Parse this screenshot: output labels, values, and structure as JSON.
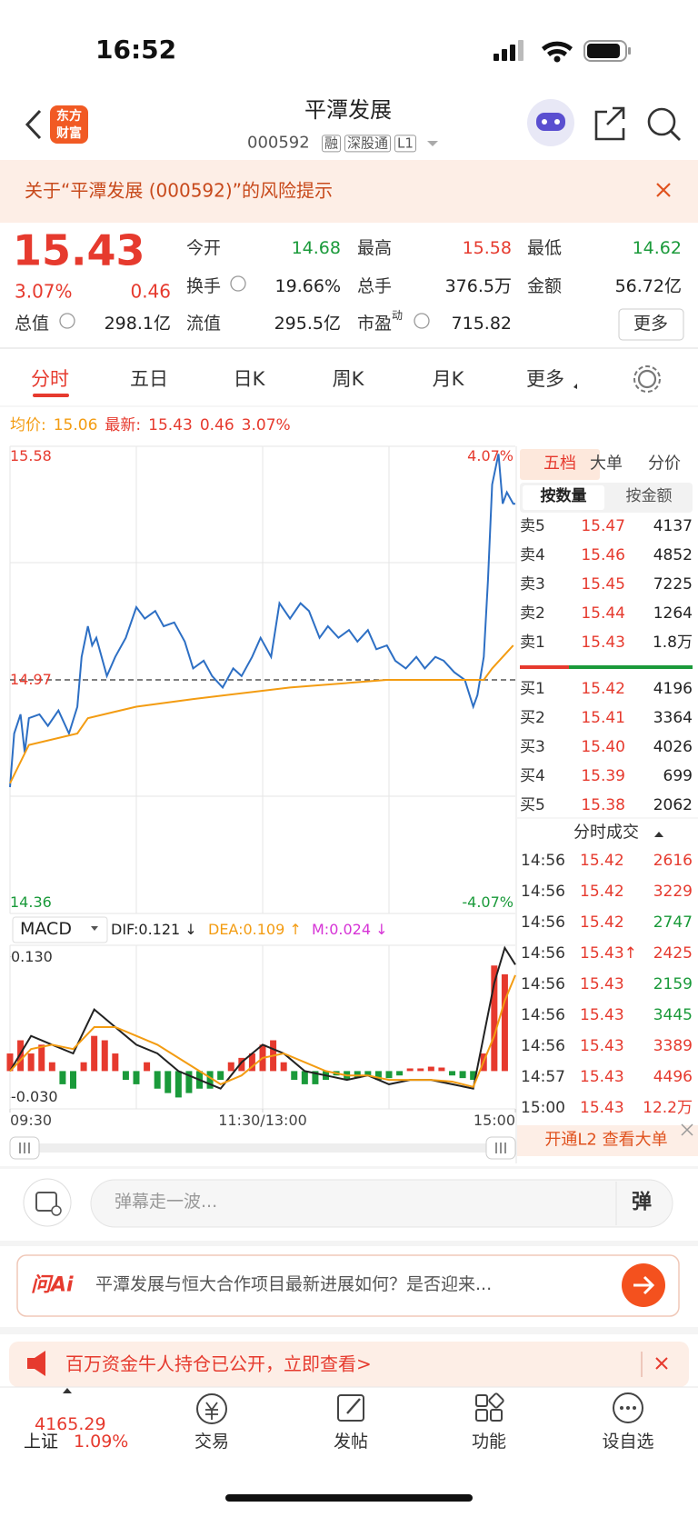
{
  "status": {
    "time": "16:52"
  },
  "header": {
    "logo": [
      "东方",
      "财富"
    ],
    "title": "平潭发展",
    "code": "000592",
    "badges": [
      "融",
      "深股通",
      "L1"
    ]
  },
  "risk_notice": "关于“平潭发展 (000592)”的风险提示",
  "quote": {
    "price": "15.43",
    "change_pct": "3.07%",
    "change": "0.46",
    "fields": [
      {
        "label": "今开",
        "value": "14.68",
        "color": "#1a9a3a"
      },
      {
        "label": "最高",
        "value": "15.58",
        "color": "#e63a2e"
      },
      {
        "label": "最低",
        "value": "14.62",
        "color": "#1a9a3a"
      },
      {
        "label": "换手",
        "value": "19.66%"
      },
      {
        "label": "总手",
        "value": "376.5万"
      },
      {
        "label": "金额",
        "value": "56.72亿"
      },
      {
        "label": "总值",
        "value": "298.1亿"
      },
      {
        "label": "流值",
        "value": "295.5亿"
      },
      {
        "label": "市盈",
        "sup": "动",
        "value": "715.82"
      }
    ],
    "more": "更多"
  },
  "tabs": [
    "分时",
    "五日",
    "日K",
    "周K",
    "月K",
    "更多"
  ],
  "summary": {
    "avg_label": "均价:",
    "avg": "15.06",
    "last_label": "最新:",
    "last": "15.43",
    "change": "0.46",
    "pct": "3.07%"
  },
  "chart_data": [
    {
      "type": "line",
      "ylim": [
        14.36,
        15.58
      ],
      "yticks": [
        15.58,
        14.97,
        14.36
      ],
      "y2lim": [
        -4.07,
        4.07
      ],
      "y2ticks": [
        {
          "value": 4.07,
          "label": "4.07%"
        },
        {
          "value": -4.07,
          "label": "-4.07%"
        }
      ],
      "series": [
        {
          "name": "price",
          "color": "#2d6fc4",
          "x": [
            "09:30",
            "09:32",
            "09:35",
            "09:37",
            "09:39",
            "09:44",
            "09:48",
            "09:53",
            "09:58",
            "10:02",
            "10:04",
            "10:07",
            "10:09",
            "10:11",
            "10:16",
            "10:20",
            "10:25",
            "10:30",
            "10:34",
            "10:39",
            "10:43",
            "10:48",
            "10:53",
            "10:57",
            "11:02",
            "11:06",
            "11:11",
            "11:16",
            "11:20",
            "11:25",
            "11:29",
            "13:04",
            "13:08",
            "13:13",
            "13:18",
            "13:22",
            "13:27",
            "13:31",
            "13:36",
            "13:41",
            "13:45",
            "13:50",
            "13:54",
            "13:59",
            "14:03",
            "14:08",
            "14:13",
            "14:17",
            "14:22",
            "14:26",
            "14:31",
            "14:36",
            "14:40",
            "14:42",
            "14:45",
            "14:47",
            "14:49",
            "14:52",
            "14:54",
            "14:56",
            "14:59",
            "15:00"
          ],
          "values": [
            14.69,
            14.83,
            14.88,
            14.78,
            14.87,
            14.88,
            14.85,
            14.89,
            14.83,
            14.9,
            15.03,
            15.11,
            15.06,
            15.08,
            14.98,
            15.03,
            15.08,
            15.16,
            15.13,
            15.15,
            15.11,
            15.12,
            15.07,
            15.0,
            15.02,
            14.98,
            14.95,
            15.0,
            14.98,
            15.03,
            15.08,
            15.03,
            15.17,
            15.13,
            15.17,
            15.15,
            15.08,
            15.11,
            15.08,
            15.1,
            15.07,
            15.1,
            15.05,
            15.06,
            15.02,
            15.0,
            15.03,
            15.0,
            15.03,
            15.02,
            14.99,
            14.97,
            14.9,
            14.93,
            15.03,
            15.23,
            15.48,
            15.56,
            15.43,
            15.46,
            15.43,
            15.43
          ]
        },
        {
          "name": "avg",
          "color": "#f39c12",
          "x": [
            "09:30",
            "09:39",
            "10:02",
            "10:07",
            "10:30",
            "10:57",
            "13:13",
            "13:59",
            "14:45",
            "14:49",
            "14:59"
          ],
          "values": [
            14.7,
            14.8,
            14.83,
            14.87,
            14.9,
            14.92,
            14.95,
            14.97,
            14.97,
            15.0,
            15.06
          ]
        }
      ]
    },
    {
      "type": "macd",
      "indicator": "MACD",
      "ylim": [
        -0.043,
        0.143
      ],
      "yticks": [
        {
          "value": 0.13,
          "label": "0.130"
        },
        {
          "value": -0.03,
          "label": "-0.030"
        }
      ],
      "xticks": [
        "09:30",
        {
          "value": "11:30",
          "label": "11:30/13:00"
        },
        "15:00"
      ],
      "series": [
        {
          "name": "DIF:0.121 ↓",
          "color": "#222222",
          "x": [
            "09:30",
            "09:40",
            "09:50",
            "10:00",
            "10:10",
            "10:20",
            "10:30",
            "10:40",
            "10:50",
            "11:00",
            "11:10",
            "11:20",
            "11:30",
            "13:10",
            "13:20",
            "13:30",
            "13:40",
            "13:50",
            "14:00",
            "14:10",
            "14:20",
            "14:30",
            "14:40",
            "14:50",
            "14:55",
            "15:00"
          ],
          "values": [
            0,
            0.04,
            0.03,
            0.02,
            0.07,
            0.05,
            0.03,
            0.02,
            0,
            -0.01,
            -0.02,
            0.01,
            0.03,
            0.02,
            0,
            -0.005,
            -0.01,
            -0.005,
            -0.015,
            -0.01,
            -0.01,
            -0.015,
            -0.02,
            0.1,
            0.14,
            0.121
          ]
        },
        {
          "name": "DEA:0.109 ↑",
          "color": "#f39c12",
          "x": [
            "09:30",
            "09:40",
            "09:50",
            "10:00",
            "10:10",
            "10:20",
            "10:30",
            "10:40",
            "10:50",
            "11:00",
            "11:10",
            "11:20",
            "11:30",
            "13:10",
            "13:20",
            "13:30",
            "13:40",
            "13:50",
            "14:00",
            "14:10",
            "14:20",
            "14:30",
            "14:40",
            "14:50",
            "14:55",
            "15:00"
          ],
          "values": [
            0,
            0.025,
            0.03,
            0.025,
            0.05,
            0.05,
            0.04,
            0.03,
            0.015,
            0,
            -0.015,
            -0.005,
            0.015,
            0.02,
            0.01,
            0,
            -0.005,
            -0.005,
            -0.01,
            -0.01,
            -0.01,
            -0.012,
            -0.018,
            0.04,
            0.08,
            0.109
          ]
        },
        {
          "name": "M:0.024 ↓",
          "color": "#d633d6",
          "type": "bar",
          "up_color": "#e63a2e",
          "down_color": "#1a9a3a",
          "x": [
            "09:30",
            "09:35",
            "09:40",
            "09:45",
            "09:50",
            "09:55",
            "10:00",
            "10:05",
            "10:10",
            "10:15",
            "10:20",
            "10:25",
            "10:30",
            "10:35",
            "10:40",
            "10:45",
            "10:50",
            "10:55",
            "11:00",
            "11:05",
            "11:10",
            "11:15",
            "11:20",
            "11:25",
            "11:30",
            "13:05",
            "13:10",
            "13:15",
            "13:20",
            "13:25",
            "13:30",
            "13:35",
            "13:40",
            "13:45",
            "13:50",
            "13:55",
            "14:00",
            "14:05",
            "14:10",
            "14:15",
            "14:20",
            "14:25",
            "14:30",
            "14:35",
            "14:40",
            "14:45",
            "14:50",
            "14:55"
          ],
          "values": [
            0.02,
            0.035,
            0.02,
            0.03,
            0.01,
            -0.015,
            -0.02,
            0.01,
            0.04,
            0.035,
            0.02,
            -0.01,
            -0.015,
            0.01,
            -0.02,
            -0.025,
            -0.03,
            -0.025,
            -0.02,
            -0.02,
            -0.01,
            0.01,
            0.015,
            0.02,
            0.03,
            0.035,
            0.01,
            -0.01,
            -0.015,
            -0.015,
            -0.01,
            -0.005,
            -0.01,
            -0.008,
            -0.005,
            -0.01,
            -0.008,
            -0.005,
            0.003,
            0.003,
            0.005,
            0.004,
            -0.005,
            -0.008,
            -0.01,
            0.02,
            0.12,
            0.11
          ]
        }
      ]
    }
  ],
  "order_book": {
    "tabs": [
      "五档",
      "大单",
      "分价"
    ],
    "subtabs": [
      "按数量",
      "按金额"
    ],
    "sell": [
      {
        "label": "卖5",
        "price": "15.47",
        "volume": "4137"
      },
      {
        "label": "卖4",
        "price": "15.46",
        "volume": "4852"
      },
      {
        "label": "卖3",
        "price": "15.45",
        "volume": "7225"
      },
      {
        "label": "卖2",
        "price": "15.44",
        "volume": "1264"
      },
      {
        "label": "卖1",
        "price": "15.43",
        "volume": "1.8万"
      }
    ],
    "buy": [
      {
        "label": "买1",
        "price": "15.42",
        "volume": "4196"
      },
      {
        "label": "买2",
        "price": "15.41",
        "volume": "3364"
      },
      {
        "label": "买3",
        "price": "15.40",
        "volume": "4026"
      },
      {
        "label": "买4",
        "price": "15.39",
        "volume": "699"
      },
      {
        "label": "买5",
        "price": "15.38",
        "volume": "2062"
      }
    ]
  },
  "trades": {
    "title": "分时成交",
    "rows": [
      {
        "time": "14:56",
        "price": "15.42",
        "volume": "2616",
        "color": "#e63a2e"
      },
      {
        "time": "14:56",
        "price": "15.42",
        "volume": "3229",
        "color": "#e63a2e"
      },
      {
        "time": "14:56",
        "price": "15.42",
        "volume": "2747",
        "color": "#1a9a3a"
      },
      {
        "time": "14:56",
        "price": "15.43↑",
        "volume": "2425",
        "color": "#e63a2e"
      },
      {
        "time": "14:56",
        "price": "15.43",
        "volume": "2159",
        "color": "#1a9a3a"
      },
      {
        "time": "14:56",
        "price": "15.43",
        "volume": "3445",
        "color": "#1a9a3a"
      },
      {
        "time": "14:56",
        "price": "15.43",
        "volume": "3389",
        "color": "#e63a2e"
      },
      {
        "time": "14:57",
        "price": "15.43",
        "volume": "4496",
        "color": "#e63a2e"
      },
      {
        "time": "15:00",
        "price": "15.43",
        "volume": "12.2万",
        "color": "#e63a2e"
      }
    ],
    "l2": "开通L2 查看大单"
  },
  "comment": {
    "placeholder": "弹幕走一波...",
    "danmu": "弹"
  },
  "ai": {
    "logo": "问Ai",
    "text": "平潭发展与恒大合作项目最新进展如何？是否迎来..."
  },
  "banner": "百万资金牛人持仓已公开，立即查看>",
  "bottom": {
    "index_value": "4165.29",
    "index_name": "上证",
    "index_pct": "1.09%",
    "nav": [
      "交易",
      "发帖",
      "功能",
      "设自选"
    ]
  }
}
